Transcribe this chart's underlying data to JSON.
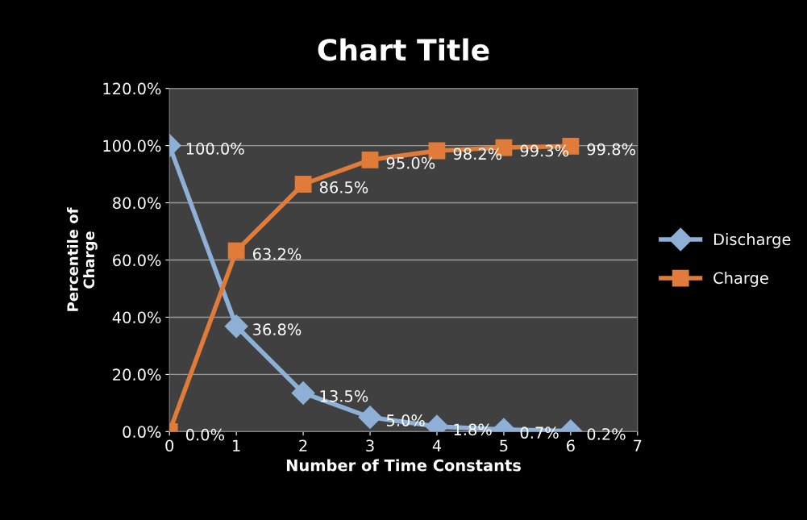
{
  "chart_data": {
    "type": "line",
    "title": "Chart Title",
    "xlabel": "Number of Time Constants",
    "ylabel": "Percentile of\nCharge",
    "x": [
      0,
      1,
      2,
      3,
      4,
      5,
      6
    ],
    "series": [
      {
        "name": "Discharge",
        "color": "#8fb0d6",
        "marker": "diamond",
        "values": [
          100.0,
          36.8,
          13.5,
          5.0,
          1.8,
          0.7,
          0.2
        ],
        "value_labels": [
          "100.0%",
          "36.8%",
          "13.5%",
          "5.0%",
          "1.8%",
          "0.7%",
          "0.2%"
        ]
      },
      {
        "name": "Charge",
        "color": "#e07b39",
        "marker": "square",
        "values": [
          0.0,
          63.2,
          86.5,
          95.0,
          98.2,
          99.3,
          99.8
        ],
        "value_labels": [
          "0.0%",
          "63.2%",
          "86.5%",
          "95.0%",
          "98.2%",
          "99.3%",
          "99.8%"
        ]
      }
    ],
    "xlim": [
      0,
      7
    ],
    "xticks": [
      0,
      1,
      2,
      3,
      4,
      5,
      6,
      7
    ],
    "ylim": [
      0,
      120
    ],
    "yticks": [
      {
        "value": 0,
        "label": "0.0%"
      },
      {
        "value": 20,
        "label": "20.0%"
      },
      {
        "value": 40,
        "label": "40.0%"
      },
      {
        "value": 60,
        "label": "60.0%"
      },
      {
        "value": 80,
        "label": "80.0%"
      },
      {
        "value": 100,
        "label": "100.0%"
      },
      {
        "value": 120,
        "label": "120.0%"
      }
    ],
    "grid": "y",
    "legend": "right",
    "line_style": "solid"
  }
}
